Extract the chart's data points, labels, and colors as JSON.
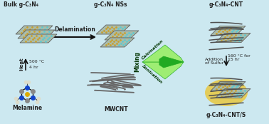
{
  "bg_color": "#cce8f0",
  "title_texts": {
    "bulk_cn": "Bulk g-C₃N₄",
    "cn_nss": "g-C₃N₄ NSs",
    "cn_cnt": "g-C₃N₄-CNT",
    "cn_cnt_s": "g-C₃N₄-CNT/S",
    "melamine": "Melamine",
    "mwcnt": "MWCNT",
    "delamination": "Delamination",
    "heat": "Heat",
    "temp1": "500 °C",
    "time1": "4 hr",
    "mixing": "Mixing",
    "sonication": "Sonication",
    "calcination": "Calcination",
    "addition": "Addition\nof Sulfur",
    "temp2": "160 °C for\n15 hr"
  },
  "sheet_face": "#aabcaa",
  "sheet_edge": "#606060",
  "dot_cyan": "#60c8d0",
  "dot_yellow": "#c8a030",
  "yellow_bg": "#e8c840",
  "arrow_color": "#111111",
  "green_dark": "#22aa22",
  "green_mid": "#55cc33",
  "green_light": "#99ee66"
}
